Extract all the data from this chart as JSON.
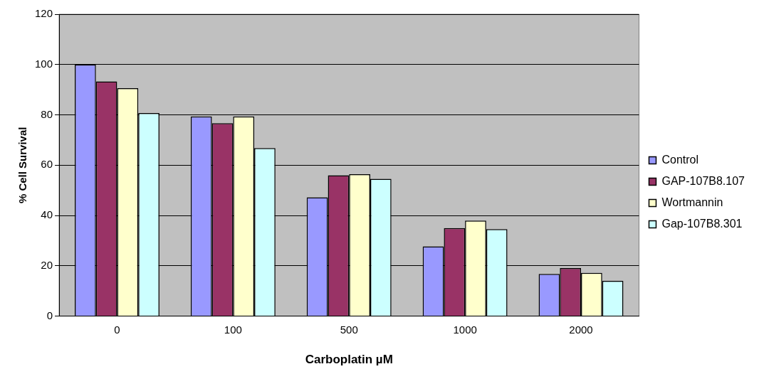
{
  "chart_data": {
    "type": "bar",
    "xlabel": "Carboplatin µM",
    "ylabel": "% Cell Survival",
    "categories": [
      "0",
      "100",
      "500",
      "1000",
      "2000"
    ],
    "series": [
      {
        "name": "Control",
        "color": "#9999ff",
        "values": [
          100,
          79.4,
          47.2,
          27.7,
          16.8
        ]
      },
      {
        "name": "GAP-107B8.107",
        "color": "#993366",
        "values": [
          93.3,
          76.7,
          56,
          35,
          19.1
        ]
      },
      {
        "name": "Wortmannin",
        "color": "#ffffcc",
        "values": [
          90.6,
          79.4,
          56.4,
          38,
          17.2
        ]
      },
      {
        "name": "Gap-107B8.301",
        "color": "#ccffff",
        "values": [
          80.7,
          66.8,
          54.6,
          34.6,
          14
        ]
      }
    ],
    "ylim": [
      0,
      120
    ],
    "yticks": [
      0,
      20,
      40,
      60,
      80,
      100,
      120
    ],
    "grid": "y",
    "legend": "right"
  }
}
